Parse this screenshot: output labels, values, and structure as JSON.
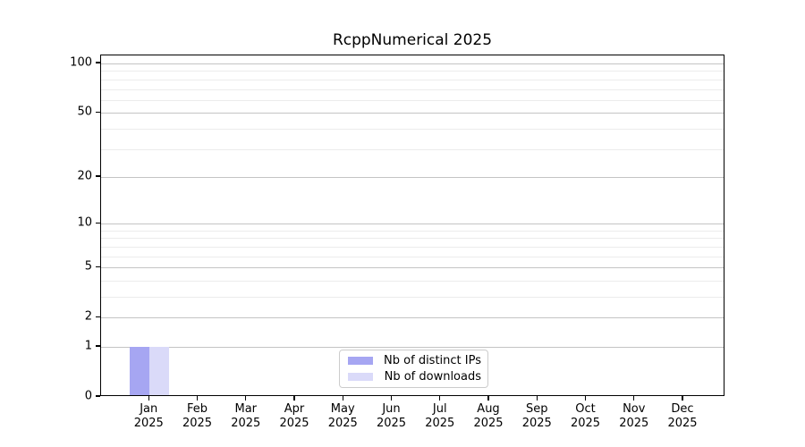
{
  "chart_data": {
    "type": "bar",
    "title": "RcppNumerical 2025",
    "categories": [
      "Jan",
      "Feb",
      "Mar",
      "Apr",
      "May",
      "Jun",
      "Jul",
      "Aug",
      "Sep",
      "Oct",
      "Nov",
      "Dec"
    ],
    "year_label": "2025",
    "series": [
      {
        "name": "Nb of distinct IPs",
        "color": "#a6a6f2",
        "values": [
          1,
          0,
          0,
          0,
          0,
          0,
          0,
          0,
          0,
          0,
          0,
          0
        ]
      },
      {
        "name": "Nb of downloads",
        "color": "#dadaf9",
        "values": [
          1,
          0,
          0,
          0,
          0,
          0,
          0,
          0,
          0,
          0,
          0,
          0
        ]
      }
    ],
    "yscale": "log1p",
    "ylim": [
      0,
      112
    ],
    "yticks": [
      0,
      1,
      2,
      5,
      10,
      20,
      50,
      100
    ],
    "yticks_minor": [
      3,
      4,
      6,
      7,
      8,
      9,
      30,
      40,
      60,
      70,
      80,
      90
    ],
    "grid": "horizontal",
    "legend_position": "inside-bottom-center",
    "colors": {
      "spine": "#000000",
      "grid_major": "#c4c4c4",
      "grid_minor": "#ececec",
      "text": "#000000"
    }
  }
}
